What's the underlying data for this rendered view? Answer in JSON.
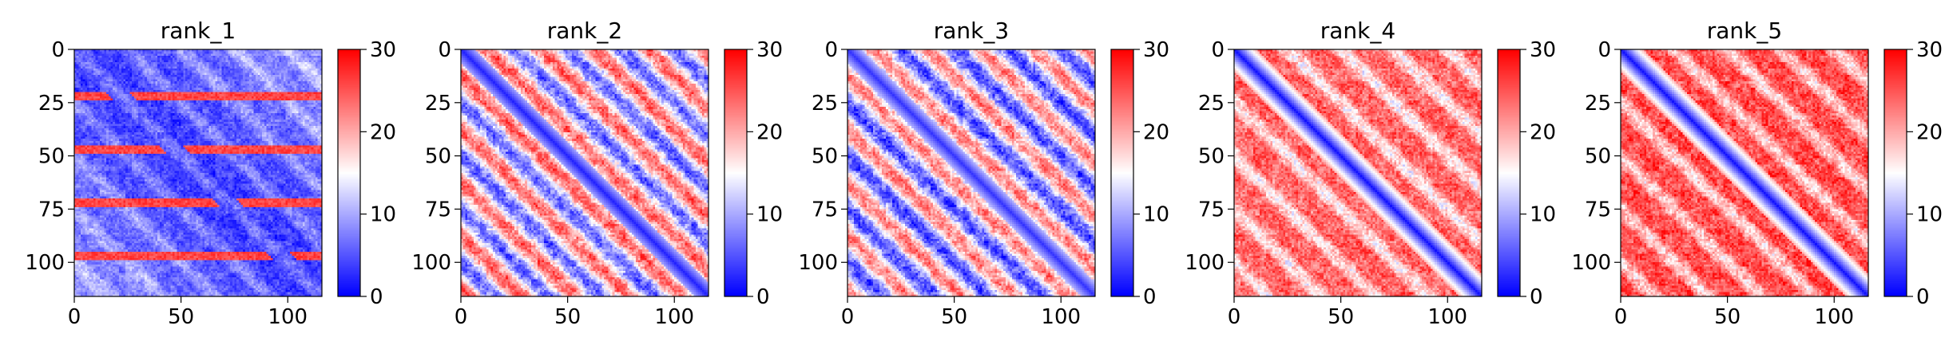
{
  "chart_data": [
    {
      "type": "heatmap",
      "title": "rank_1",
      "pattern": 1,
      "xlim": [
        0,
        116
      ],
      "ylim": [
        116,
        0
      ],
      "colorbar": {
        "cmap": "bwr",
        "range": [
          0,
          30
        ],
        "ticks": [
          0,
          10,
          20,
          30
        ]
      },
      "xticks": [
        0,
        50,
        100
      ],
      "yticks": [
        0,
        25,
        50,
        75,
        100
      ]
    },
    {
      "type": "heatmap",
      "title": "rank_2",
      "pattern": 2,
      "xlim": [
        0,
        116
      ],
      "ylim": [
        116,
        0
      ],
      "colorbar": {
        "cmap": "bwr",
        "range": [
          0,
          30
        ],
        "ticks": [
          0,
          10,
          20,
          30
        ]
      },
      "xticks": [
        0,
        50,
        100
      ],
      "yticks": [
        0,
        25,
        50,
        75,
        100
      ]
    },
    {
      "type": "heatmap",
      "title": "rank_3",
      "pattern": 3,
      "xlim": [
        0,
        116
      ],
      "ylim": [
        116,
        0
      ],
      "colorbar": {
        "cmap": "bwr",
        "range": [
          0,
          30
        ],
        "ticks": [
          0,
          10,
          20,
          30
        ]
      },
      "xticks": [
        0,
        50,
        100
      ],
      "yticks": [
        0,
        25,
        50,
        75,
        100
      ]
    },
    {
      "type": "heatmap",
      "title": "rank_4",
      "pattern": 4,
      "xlim": [
        0,
        116
      ],
      "ylim": [
        116,
        0
      ],
      "colorbar": {
        "cmap": "bwr",
        "range": [
          0,
          30
        ],
        "ticks": [
          0,
          10,
          20,
          30
        ]
      },
      "xticks": [
        0,
        50,
        100
      ],
      "yticks": [
        0,
        25,
        50,
        75,
        100
      ]
    },
    {
      "type": "heatmap",
      "title": "rank_5",
      "pattern": 5,
      "xlim": [
        0,
        116
      ],
      "ylim": [
        116,
        0
      ],
      "colorbar": {
        "cmap": "bwr",
        "range": [
          0,
          30
        ],
        "ticks": [
          0,
          10,
          20,
          30
        ]
      },
      "xticks": [
        0,
        50,
        100
      ],
      "yticks": [
        0,
        25,
        50,
        75,
        100
      ]
    }
  ]
}
